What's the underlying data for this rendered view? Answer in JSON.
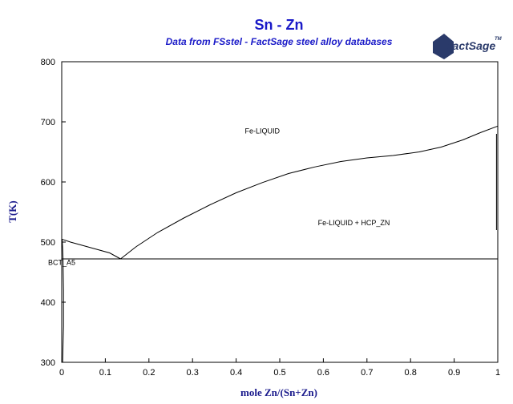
{
  "chart_data": {
    "type": "line",
    "title": "Sn - Zn",
    "subtitle": "Data from FSstel - FactSage steel alloy databases",
    "xlabel": "mole Zn/(Sn+Zn)",
    "ylabel": "T(K)",
    "xlim": [
      0,
      1
    ],
    "ylim": [
      300,
      800
    ],
    "x_ticks": [
      "0",
      "0.1",
      "0.2",
      "0.3",
      "0.4",
      "0.5",
      "0.6",
      "0.7",
      "0.8",
      "0.9",
      "1"
    ],
    "y_ticks": [
      "300",
      "400",
      "500",
      "600",
      "700",
      "800"
    ],
    "grid": false,
    "regions": [
      {
        "label": "Fe-LIQUID",
        "x": 0.46,
        "y": 685
      },
      {
        "label": "Fe-LIQUID + HCP_ZN",
        "x": 0.67,
        "y": 532
      },
      {
        "label": "BCT_A5",
        "x": 0.025,
        "y": 466
      }
    ],
    "series": [
      {
        "x": [
          0.0,
          0.02,
          0.05,
          0.08,
          0.11,
          0.135
        ],
        "y": [
          505,
          500,
          494,
          488,
          482,
          472
        ]
      },
      {
        "x": [
          0.135,
          0.17,
          0.22,
          0.28,
          0.34,
          0.4,
          0.46,
          0.52,
          0.58,
          0.64,
          0.7,
          0.76,
          0.82,
          0.87,
          0.92,
          0.96,
          1.0
        ],
        "y": [
          472,
          492,
          516,
          540,
          562,
          582,
          599,
          614,
          625,
          634,
          640,
          644,
          650,
          658,
          670,
          682,
          693
        ]
      },
      {
        "x": [
          0.0,
          1.0
        ],
        "y": [
          472,
          472
        ]
      },
      {
        "x": [
          0.002,
          0.004,
          0.004,
          0.003,
          0.002,
          0.001
        ],
        "y": [
          300,
          360,
          420,
          472,
          490,
          505
        ]
      },
      {
        "x": [
          0.0,
          0.0
        ],
        "y": [
          300,
          505
        ]
      },
      {
        "x": [
          0.997,
          0.997
        ],
        "y": [
          520,
          680
        ]
      }
    ]
  },
  "logo": {
    "text": "FactSage",
    "tm": "TM"
  }
}
